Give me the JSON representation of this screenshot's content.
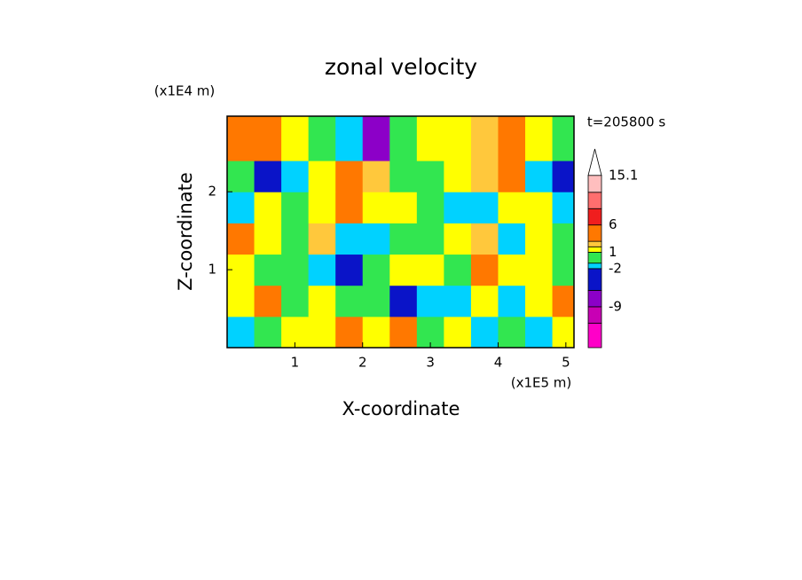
{
  "chart_data": {
    "type": "contour",
    "title": "zonal velocity",
    "x_label": "X-coordinate",
    "y_label": "Z-coordinate",
    "x_unit": "(x1E5 m)",
    "y_unit": "(x1E4 m)",
    "time_label": "t=205800 s",
    "xlim": [
      0,
      5.12
    ],
    "ylim": [
      0,
      2.97
    ],
    "xticks": [
      1,
      2,
      3,
      4,
      5
    ],
    "yticks": [
      1,
      2
    ],
    "x": [
      0.2,
      0.6,
      1.0,
      1.4,
      1.8,
      2.2,
      2.6,
      3.0,
      3.4,
      3.8,
      4.2,
      4.6,
      5.0
    ],
    "y": [
      0.2,
      0.6,
      1.0,
      1.4,
      1.8,
      2.2,
      2.6
    ],
    "z": [
      [
        -1.5,
        0,
        1.5,
        1.5,
        4,
        1.5,
        4,
        0,
        1.5,
        -1.5,
        0,
        -1.5,
        1.5
      ],
      [
        1.5,
        4,
        0,
        1.5,
        0,
        0,
        -4,
        -1.5,
        -1.5,
        1.5,
        -1.5,
        1.5,
        4
      ],
      [
        1.5,
        0,
        0,
        -1.5,
        -3,
        0,
        1.5,
        1.5,
        0,
        4,
        1.5,
        1.5,
        0
      ],
      [
        4,
        1.5,
        0,
        2.5,
        -1.5,
        -1.5,
        0,
        0,
        1.5,
        2.5,
        -1.5,
        1.5,
        0
      ],
      [
        -1.5,
        1.5,
        0,
        1.5,
        4,
        1.5,
        1.5,
        0,
        -1.5,
        -1.5,
        1.5,
        1.5,
        -1.5
      ],
      [
        0,
        -5,
        -1.5,
        1.5,
        4,
        2.5,
        0,
        0,
        1.5,
        2.5,
        4,
        -1.5,
        -4
      ],
      [
        4,
        4,
        1.5,
        0,
        -1.5,
        -6,
        0,
        1.5,
        1.5,
        2.5,
        4,
        1.5,
        0
      ]
    ],
    "colorbar": {
      "clim": [
        -16.5,
        17.5
      ],
      "levels": [
        -12,
        -9,
        -6,
        -2,
        -1,
        1,
        2,
        3,
        6,
        9,
        12,
        15.1
      ],
      "colors": [
        "#ff00c8",
        "#c800b4",
        "#8c00c8",
        "#0a14c8",
        "#00d2ff",
        "#32e650",
        "#ffff00",
        "#ffc83c",
        "#ff7800",
        "#f01e1e",
        "#ff6e6e",
        "#ffbebe"
      ],
      "over_color": "#ffffff",
      "labeled_levels": [
        -9,
        -2,
        1,
        6,
        15.1
      ]
    }
  }
}
